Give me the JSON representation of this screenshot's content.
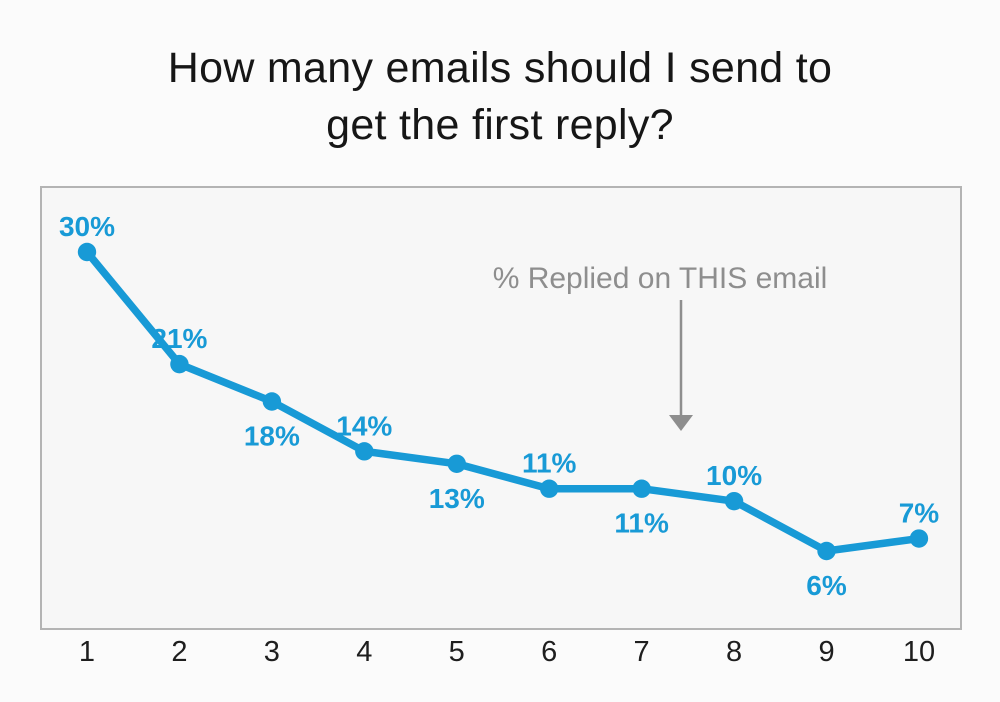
{
  "title": {
    "lines": [
      "How many emails should I send to",
      "get the first reply?"
    ]
  },
  "colors": {
    "accent_blue": "#189AD6",
    "annotation_gray": "#8E8E8E",
    "title_text": "#161616",
    "axis_text": "#1E1E1E",
    "panel_border": "#B4B4B4",
    "panel_fill": "#F7F7F7",
    "page_bg": "#FBFBFB"
  },
  "chart_data": {
    "type": "line",
    "title": "How many emails should I send to get the first reply?",
    "x": [
      1,
      2,
      3,
      4,
      5,
      6,
      7,
      8,
      9,
      10
    ],
    "xlabel": "",
    "ylabel": "",
    "series": [
      {
        "name": "% Replied on THIS email",
        "values": [
          30,
          21,
          18,
          14,
          13,
          11,
          11,
          10,
          6,
          7
        ]
      }
    ],
    "point_labels": [
      "30%",
      "21%",
      "18%",
      "14%",
      "13%",
      "11%",
      "11%",
      "10%",
      "6%",
      "7%"
    ],
    "label_side": [
      "above",
      "above",
      "below",
      "above",
      "below",
      "above",
      "below",
      "above",
      "below",
      "above"
    ],
    "annotation": "% Replied on THIS email",
    "ylim": [
      0,
      33
    ],
    "grid": false,
    "legend": "gray annotation with downward arrow, upper right area"
  }
}
